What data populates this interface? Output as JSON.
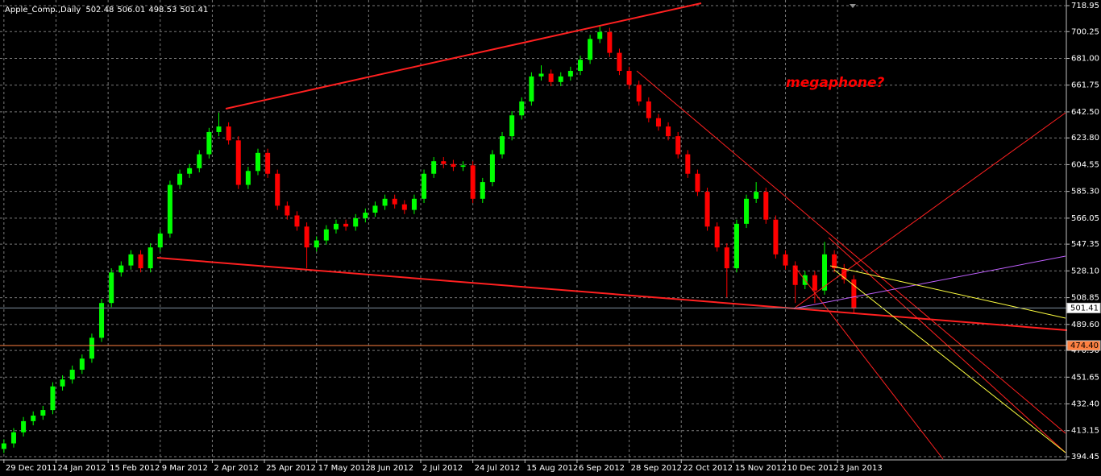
{
  "chart_data": {
    "type": "candlestick",
    "title": "Apple_Comp.,Daily",
    "title_values": [
      502.48,
      506.01,
      498.53,
      501.41
    ],
    "annotation": "megaphone?",
    "x": [
      0,
      3,
      6,
      9,
      12,
      15,
      18,
      21,
      24,
      27,
      30,
      33,
      36,
      39,
      42,
      45,
      48,
      51,
      54,
      57,
      60,
      63,
      66,
      69,
      72,
      75,
      78,
      81,
      84,
      87,
      90,
      93,
      96,
      99,
      102,
      105,
      108,
      111,
      114,
      117,
      120,
      123,
      126,
      129,
      132,
      135,
      138,
      141,
      144,
      147,
      150,
      153,
      156,
      159,
      162,
      165,
      168,
      171,
      174,
      177,
      180,
      183,
      186,
      189,
      192,
      195,
      198,
      201,
      204,
      207,
      210,
      213,
      216,
      219,
      222,
      225,
      228,
      231,
      234,
      237,
      240,
      243,
      246,
      249,
      252,
      255,
      258,
      261
    ],
    "open": [
      400,
      404,
      412,
      420,
      424,
      428,
      445,
      450,
      457,
      465,
      480,
      505,
      527,
      532,
      540,
      530,
      545,
      555,
      590,
      598,
      602,
      612,
      628,
      632,
      622,
      590,
      600,
      613,
      598,
      575,
      568,
      560,
      545,
      550,
      558,
      562,
      560,
      566,
      570,
      575,
      580,
      576,
      572,
      580,
      598,
      607,
      605,
      603,
      604,
      580,
      592,
      612,
      625,
      640,
      650,
      668,
      670,
      664,
      668,
      672,
      680,
      695,
      700,
      685,
      672,
      662,
      650,
      638,
      632,
      625,
      612,
      598,
      585,
      560,
      545,
      530,
      562,
      580,
      585,
      565,
      540,
      532,
      518,
      525,
      514,
      540,
      530,
      522
    ],
    "high": [
      407,
      415,
      423,
      427,
      431,
      448,
      453,
      460,
      468,
      483,
      508,
      530,
      535,
      543,
      543,
      548,
      558,
      593,
      601,
      605,
      615,
      631,
      642,
      635,
      625,
      603,
      616,
      616,
      601,
      578,
      571,
      563,
      553,
      561,
      565,
      565,
      569,
      573,
      578,
      583,
      583,
      579,
      583,
      601,
      610,
      610,
      608,
      607,
      607,
      595,
      615,
      628,
      643,
      653,
      671,
      676,
      673,
      671,
      675,
      683,
      698,
      705,
      703,
      688,
      675,
      665,
      653,
      641,
      635,
      628,
      615,
      601,
      588,
      563,
      548,
      565,
      583,
      592,
      588,
      568,
      543,
      535,
      528,
      528,
      549,
      543,
      533,
      525
    ],
    "low": [
      397,
      401,
      409,
      417,
      421,
      425,
      442,
      447,
      454,
      462,
      477,
      502,
      524,
      529,
      527,
      527,
      542,
      552,
      587,
      595,
      599,
      609,
      625,
      619,
      587,
      587,
      597,
      595,
      572,
      565,
      557,
      530,
      542,
      547,
      555,
      557,
      557,
      563,
      567,
      572,
      573,
      569,
      569,
      577,
      595,
      602,
      600,
      600,
      577,
      577,
      589,
      609,
      622,
      637,
      647,
      665,
      661,
      661,
      665,
      669,
      677,
      692,
      682,
      669,
      659,
      647,
      635,
      629,
      622,
      609,
      595,
      582,
      557,
      542,
      509,
      527,
      559,
      577,
      562,
      537,
      529,
      505,
      515,
      505,
      511,
      527,
      519,
      498
    ],
    "close": [
      404,
      412,
      420,
      424,
      428,
      445,
      450,
      457,
      465,
      480,
      505,
      527,
      532,
      540,
      530,
      545,
      555,
      590,
      598,
      602,
      612,
      628,
      632,
      622,
      590,
      600,
      613,
      598,
      575,
      568,
      560,
      545,
      550,
      558,
      562,
      560,
      566,
      570,
      575,
      580,
      576,
      572,
      580,
      598,
      607,
      605,
      603,
      604,
      580,
      592,
      612,
      625,
      640,
      650,
      668,
      670,
      664,
      668,
      672,
      680,
      695,
      700,
      685,
      672,
      662,
      650,
      638,
      632,
      625,
      612,
      598,
      585,
      560,
      545,
      530,
      562,
      580,
      585,
      565,
      540,
      532,
      518,
      525,
      514,
      540,
      530,
      522,
      501
    ],
    "up_color": "#00ff00",
    "down_color": "#ff0000",
    "xlim": [
      -1.2,
      326
    ],
    "xticks": [
      {
        "value": 0,
        "label": "29 Dec 2011"
      },
      {
        "value": 16,
        "label": "24 Jan 2012"
      },
      {
        "value": 32,
        "label": "15 Feb 2012"
      },
      {
        "value": 48,
        "label": "9 Mar 2012"
      },
      {
        "value": 64,
        "label": "2 Apr 2012"
      },
      {
        "value": 80,
        "label": "25 Apr 2012"
      },
      {
        "value": 96,
        "label": "17 May 2012"
      },
      {
        "value": 112,
        "label": "8 Jun 2012"
      },
      {
        "value": 128,
        "label": "2 Jul 2012"
      },
      {
        "value": 144,
        "label": "24 Jul 2012"
      },
      {
        "value": 160,
        "label": "15 Aug 2012"
      },
      {
        "value": 176,
        "label": "6 Sep 2012"
      },
      {
        "value": 192,
        "label": "28 Sep 2012"
      },
      {
        "value": 208,
        "label": "22 Oct 2012"
      },
      {
        "value": 224,
        "label": "15 Nov 2012"
      },
      {
        "value": 240,
        "label": "10 Dec 2012"
      },
      {
        "value": 256,
        "label": "3 Jan 2013"
      }
    ],
    "ylim": [
      394.45,
      718.95
    ],
    "yticks": [
      718.95,
      700.25,
      {
        "value": 681,
        "label": "681.00"
      },
      661.75,
      {
        "value": 642.5,
        "label": "642.50"
      },
      {
        "value": 623.8,
        "label": "623.80"
      },
      604.55,
      {
        "value": 585.3,
        "label": "585.30"
      },
      566.05,
      547.35,
      {
        "value": 528.1,
        "label": "528.10"
      },
      508.85,
      {
        "value": 489.6,
        "label": "489.60"
      },
      {
        "value": 470.9,
        "label": "470.90"
      },
      451.65,
      {
        "value": 432.4,
        "label": "432.40"
      },
      413.15,
      394.45
    ],
    "price_lines": [
      {
        "value": 501.41,
        "color": "#8090a0"
      },
      {
        "value": 474.4,
        "label": "474.40",
        "color": "#ff8040"
      }
    ],
    "grid": true
  }
}
